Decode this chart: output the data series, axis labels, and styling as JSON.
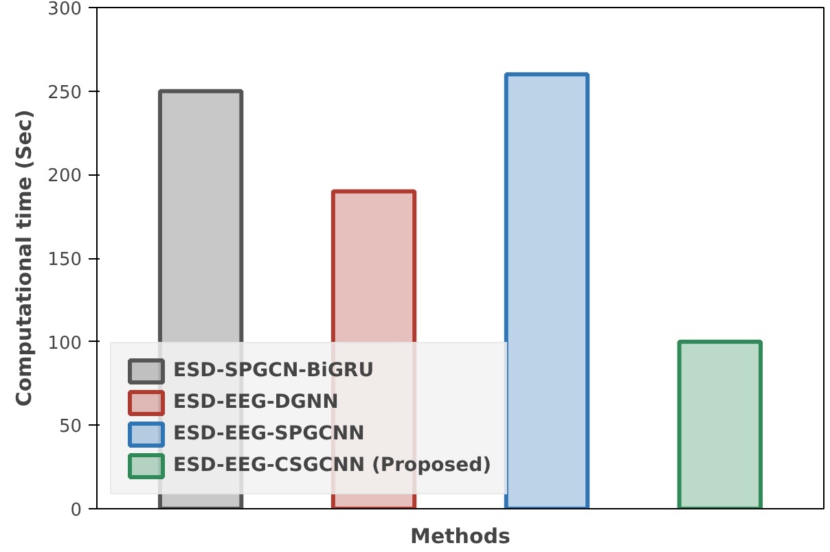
{
  "chart_data": {
    "type": "bar",
    "xlabel": "Methods",
    "ylabel": "Computational time (Sec)",
    "categories": [
      null,
      null,
      null,
      null
    ],
    "series": [
      {
        "name": "ESD-SPGCN-BiGRU",
        "color": "#555555",
        "values": [
          250,
          null,
          null,
          null
        ]
      },
      {
        "name": "ESD-EEG-DGNN",
        "color": "#b03a2e",
        "values": [
          null,
          190,
          null,
          null
        ]
      },
      {
        "name": "ESD-EEG-SPGCNN",
        "color": "#2e75b6",
        "values": [
          null,
          null,
          260,
          null
        ]
      },
      {
        "name": "ESD-EEG-CSGCNN (Proposed)",
        "color": "#2e8b57",
        "values": [
          null,
          null,
          null,
          100
        ]
      }
    ],
    "ylim": [
      0,
      300
    ],
    "yticks": [
      0,
      50,
      100,
      150,
      200,
      250,
      300
    ],
    "legend": "bottom left",
    "tick_labels": "y",
    "grid": false
  }
}
